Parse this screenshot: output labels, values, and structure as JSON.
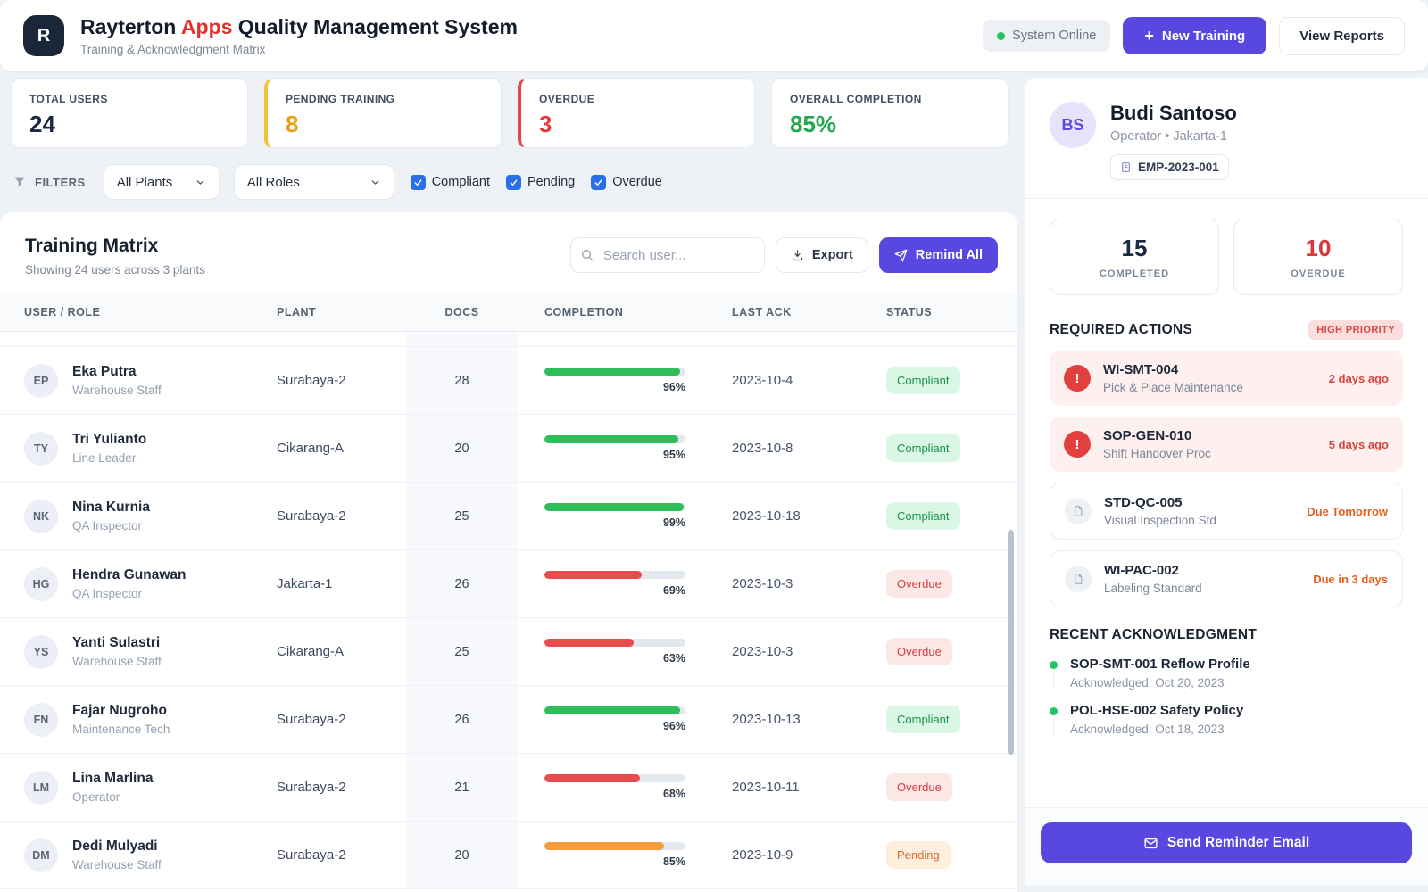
{
  "header": {
    "logo": "R",
    "title_brand": "Rayterton",
    "title_accent": "Apps",
    "title_rest": "Quality Management System",
    "subtitle": "Training & Acknowledgment Matrix",
    "system_status": "System Online",
    "new_training_plus": "+",
    "new_training_label": "New Training",
    "view_reports_label": "View Reports"
  },
  "stats": [
    {
      "label": "TOTAL USERS",
      "value": "24"
    },
    {
      "label": "PENDING TRAINING",
      "value": "8"
    },
    {
      "label": "OVERDUE",
      "value": "3"
    },
    {
      "label": "OVERALL COMPLETION",
      "value": "85%"
    }
  ],
  "filters": {
    "label": "FILTERS",
    "plant_select": "All Plants",
    "role_select": "All Roles",
    "checkboxes": [
      {
        "label": "Compliant",
        "checked": true
      },
      {
        "label": "Pending",
        "checked": true
      },
      {
        "label": "Overdue",
        "checked": true
      }
    ]
  },
  "matrix": {
    "title": "Training Matrix",
    "subtitle": "Showing 24 users across 3 plants",
    "search_placeholder": "Search user...",
    "export_label": "Export",
    "remind_label": "Remind All",
    "columns": [
      "USER / ROLE",
      "PLANT",
      "DOCS",
      "COMPLETION",
      "LAST ACK",
      "STATUS"
    ],
    "rows": [
      {
        "initials": "EP",
        "name": "Eka Putra",
        "role": "Warehouse Staff",
        "plant": "Surabaya-2",
        "docs": "28",
        "completion": 96,
        "completion_label": "96%",
        "bar": "green",
        "last_ack": "2023-10-4",
        "status": "Compliant"
      },
      {
        "initials": "TY",
        "name": "Tri Yulianto",
        "role": "Line Leader",
        "plant": "Cikarang-A",
        "docs": "20",
        "completion": 95,
        "completion_label": "95%",
        "bar": "green",
        "last_ack": "2023-10-8",
        "status": "Compliant"
      },
      {
        "initials": "NK",
        "name": "Nina Kurnia",
        "role": "QA Inspector",
        "plant": "Surabaya-2",
        "docs": "25",
        "completion": 99,
        "completion_label": "99%",
        "bar": "green",
        "last_ack": "2023-10-18",
        "status": "Compliant"
      },
      {
        "initials": "HG",
        "name": "Hendra Gunawan",
        "role": "QA Inspector",
        "plant": "Jakarta-1",
        "docs": "26",
        "completion": 69,
        "completion_label": "69%",
        "bar": "red",
        "last_ack": "2023-10-3",
        "status": "Overdue"
      },
      {
        "initials": "YS",
        "name": "Yanti Sulastri",
        "role": "Warehouse Staff",
        "plant": "Cikarang-A",
        "docs": "25",
        "completion": 63,
        "completion_label": "63%",
        "bar": "red",
        "last_ack": "2023-10-3",
        "status": "Overdue"
      },
      {
        "initials": "FN",
        "name": "Fajar Nugroho",
        "role": "Maintenance Tech",
        "plant": "Surabaya-2",
        "docs": "26",
        "completion": 96,
        "completion_label": "96%",
        "bar": "green",
        "last_ack": "2023-10-13",
        "status": "Compliant"
      },
      {
        "initials": "LM",
        "name": "Lina Marlina",
        "role": "Operator",
        "plant": "Surabaya-2",
        "docs": "21",
        "completion": 68,
        "completion_label": "68%",
        "bar": "red",
        "last_ack": "2023-10-11",
        "status": "Overdue"
      },
      {
        "initials": "DM",
        "name": "Dedi Mulyadi",
        "role": "Warehouse Staff",
        "plant": "Surabaya-2",
        "docs": "20",
        "completion": 85,
        "completion_label": "85%",
        "bar": "orange",
        "last_ack": "2023-10-9",
        "status": "Pending"
      }
    ]
  },
  "profile": {
    "initials": "BS",
    "name": "Budi Santoso",
    "meta": "Operator • Jakarta-1",
    "employee_id": "EMP-2023-001",
    "completed": {
      "value": "15",
      "label": "COMPLETED"
    },
    "overdue": {
      "value": "10",
      "label": "OVERDUE"
    },
    "required_actions_title": "REQUIRED ACTIONS",
    "priority_badge": "HIGH PRIORITY",
    "alert_glyph": "!",
    "actions": [
      {
        "code": "WI-SMT-004",
        "desc": "Pick & Place Maintenance",
        "due": "2 days ago",
        "type": "overdue"
      },
      {
        "code": "SOP-GEN-010",
        "desc": "Shift Handover Proc",
        "due": "5 days ago",
        "type": "overdue"
      },
      {
        "code": "STD-QC-005",
        "desc": "Visual Inspection Std",
        "due": "Due Tomorrow",
        "type": "upcoming"
      },
      {
        "code": "WI-PAC-002",
        "desc": "Labeling Standard",
        "due": "Due in 3 days",
        "type": "upcoming"
      }
    ],
    "recent_title": "RECENT ACKNOWLEDGMENT",
    "acknowledgments": [
      {
        "title": "SOP-SMT-001 Reflow Profile",
        "date": "Acknowledged: Oct 20, 2023"
      },
      {
        "title": "POL-HSE-002 Safety Policy",
        "date": "Acknowledged: Oct 18, 2023"
      }
    ],
    "send_reminder_label": "Send Reminder Email"
  },
  "colors": {
    "accent_purple": "#5848e0",
    "brand_red": "#e0312e",
    "green": "#2ebd59",
    "red": "#e84c4c",
    "orange": "#f89b3c",
    "amber": "#e3a012",
    "navy": "#1b2944",
    "checkbox_blue": "#2970e8"
  }
}
